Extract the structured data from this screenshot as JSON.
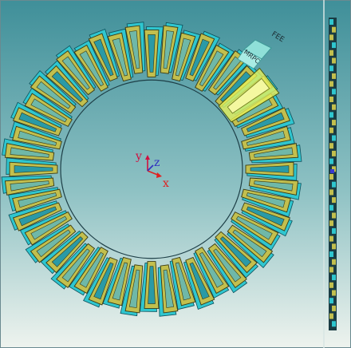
{
  "labels": {
    "fee": "FEE",
    "mrpc": "MRPC"
  },
  "axes": {
    "x": "x",
    "y": "y",
    "z": "z"
  },
  "colors": {
    "background_top": "#3f8f99",
    "background_bottom": "#eef3ee",
    "module_outer": "#2fc6cf",
    "module_inner": "#c2bf4e",
    "module_highlight": "#e6f05a",
    "fee_box": "#8fe0d8",
    "axis_x": "#e02020",
    "axis_y": "#d01040",
    "axis_z": "#3030c0"
  },
  "wheel": {
    "module_count": 48
  }
}
